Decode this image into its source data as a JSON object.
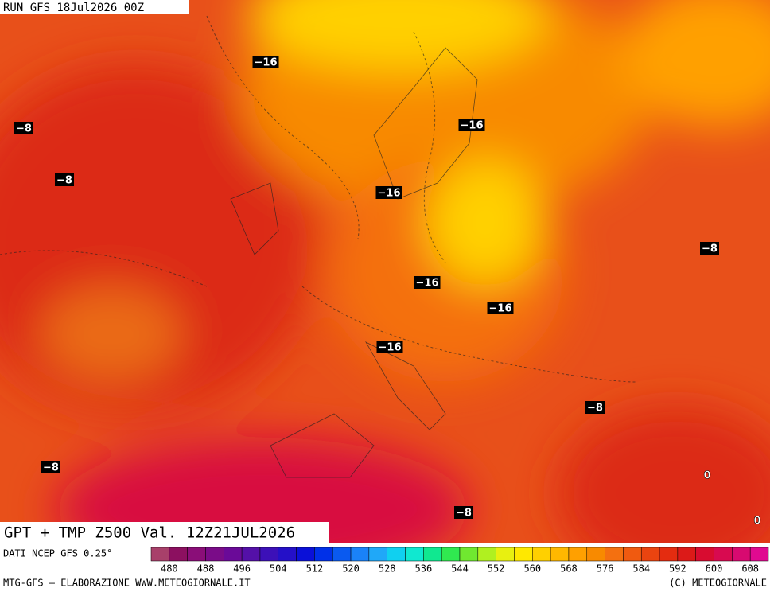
{
  "header": {
    "run": "RUN GFS 18Jul2026 00Z"
  },
  "map": {
    "title": "GPT + TMP Z500 Val. 12Z21JUL2026",
    "contour_labels": [
      "−16",
      "−8",
      "−8",
      "−16",
      "−16",
      "−8",
      "−16",
      "−16",
      "−16",
      "−8",
      "−8",
      "0",
      "−8",
      "0"
    ]
  },
  "legend": {
    "source": "DATI NCEP GFS 0.25°",
    "labels": [
      "480",
      "488",
      "496",
      "504",
      "512",
      "520",
      "528",
      "536",
      "544",
      "552",
      "560",
      "568",
      "576",
      "584",
      "592",
      "600",
      "608"
    ],
    "palette": [
      "#a8406a",
      "#8c1060",
      "#8a0e78",
      "#7a0c88",
      "#6a0a98",
      "#5410a8",
      "#3c10b8",
      "#2410c8",
      "#0a10d8",
      "#0030e8",
      "#0a5af0",
      "#1a82f8",
      "#20a8f8",
      "#10d0f0",
      "#10e8d0",
      "#10e890",
      "#30e850",
      "#70e830",
      "#b0f020",
      "#e8f010",
      "#ffe800",
      "#ffd000",
      "#ffb800",
      "#ffa000",
      "#f88a00",
      "#f47010",
      "#f05a10",
      "#ea4410",
      "#e42c10",
      "#dc1a18",
      "#d80c30",
      "#d80a50",
      "#d80a70",
      "#e00a90"
    ]
  },
  "footer": {
    "credit": "MTG-GFS — ELABORAZIONE WWW.METEOGIORNALE.IT",
    "copyright": "(C) METEOGIORNALE"
  }
}
